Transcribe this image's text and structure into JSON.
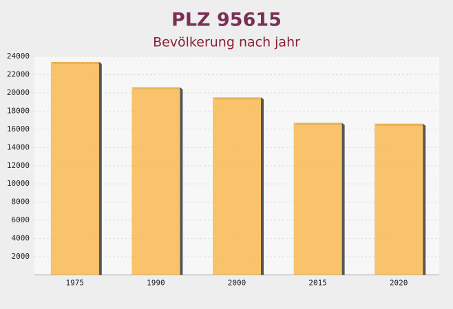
{
  "chart_data": {
    "type": "bar",
    "title": "PLZ 95615",
    "subtitle": "Bevölkerung nach jahr",
    "categories": [
      "1975",
      "1990",
      "2000",
      "2015",
      "2020"
    ],
    "values": [
      23400,
      20600,
      19500,
      16700,
      16600
    ],
    "color": "#f7bd5a",
    "ylim": [
      0,
      24000
    ],
    "yticks": [
      2000,
      4000,
      6000,
      8000,
      10000,
      12000,
      14000,
      16000,
      18000,
      20000,
      22000,
      24000
    ],
    "grid": true
  }
}
